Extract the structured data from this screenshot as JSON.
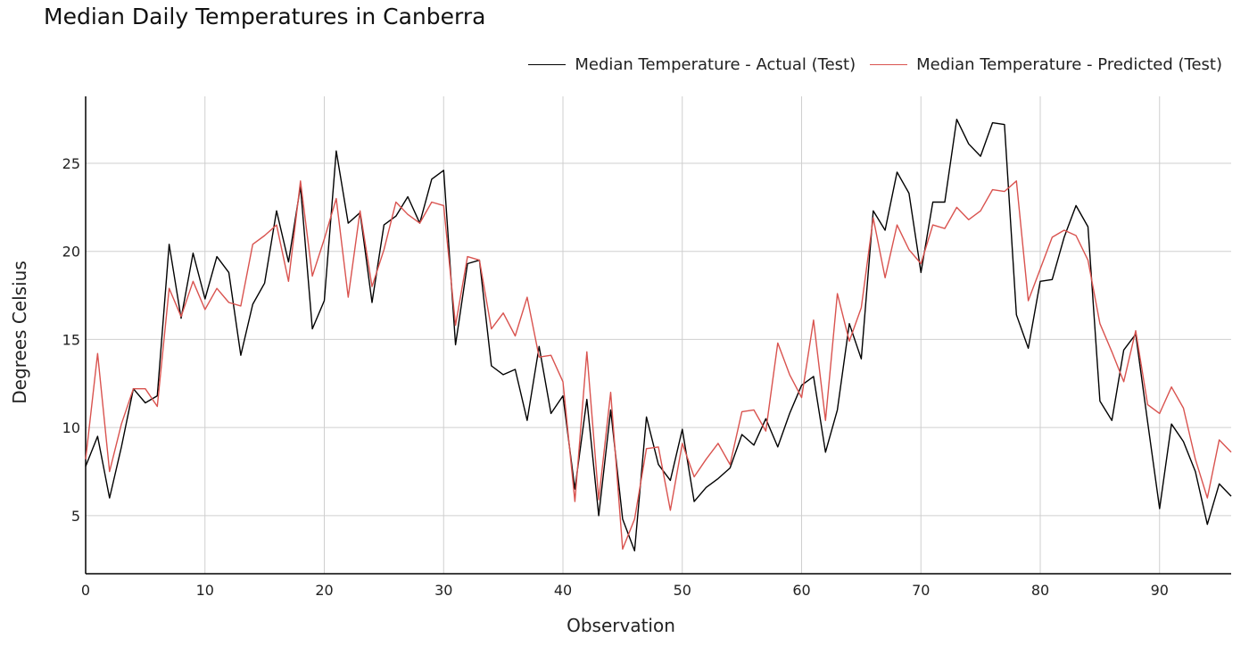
{
  "chart_data": {
    "type": "line",
    "title": "Median Daily Temperatures in Canberra",
    "xlabel": "Observation",
    "ylabel": "Degrees Celsius",
    "xlim": [
      0,
      96
    ],
    "ylim": [
      1.7,
      28.8
    ],
    "x_ticks": [
      0,
      10,
      20,
      30,
      40,
      50,
      60,
      70,
      80,
      90
    ],
    "y_ticks": [
      5,
      10,
      15,
      20,
      25
    ],
    "grid": true,
    "legend_position": "top-right",
    "series": [
      {
        "name": "Median Temperature - Actual (Test)",
        "color": "#000000",
        "values": [
          7.8,
          9.5,
          6.0,
          8.9,
          12.2,
          11.4,
          11.8,
          20.4,
          16.2,
          19.9,
          17.3,
          19.7,
          18.8,
          14.1,
          17.0,
          18.2,
          22.3,
          19.4,
          23.7,
          15.6,
          17.2,
          25.7,
          21.6,
          22.2,
          17.1,
          21.5,
          22.0,
          23.1,
          21.6,
          24.1,
          24.6,
          14.7,
          19.3,
          19.5,
          13.5,
          13.0,
          13.3,
          10.4,
          14.6,
          10.8,
          11.8,
          6.5,
          11.6,
          5.0,
          11.0,
          4.8,
          3.0,
          10.6,
          7.9,
          7.0,
          9.9,
          5.8,
          6.6,
          7.1,
          7.7,
          9.6,
          9.0,
          10.5,
          8.9,
          10.8,
          12.4,
          12.9,
          8.6,
          11.0,
          15.9,
          13.9,
          22.3,
          21.2,
          24.5,
          23.3,
          18.8,
          22.8,
          22.8,
          27.5,
          26.1,
          25.4,
          27.3,
          27.2,
          16.4,
          14.5,
          18.3,
          18.4,
          20.8,
          22.6,
          21.4,
          11.5,
          10.4,
          14.4,
          15.3,
          10.3,
          5.4,
          10.2,
          9.2,
          7.5,
          4.5,
          6.8,
          6.1
        ]
      },
      {
        "name": "Median Temperature - Predicted (Test)",
        "color": "#d9534f",
        "values": [
          8.2,
          14.2,
          7.5,
          10.2,
          12.2,
          12.2,
          11.2,
          17.9,
          16.3,
          18.3,
          16.7,
          17.9,
          17.1,
          16.9,
          20.4,
          20.9,
          21.5,
          18.3,
          24.0,
          18.6,
          20.7,
          23.0,
          17.4,
          22.3,
          18.0,
          20.1,
          22.8,
          22.1,
          21.6,
          22.8,
          22.6,
          15.8,
          19.7,
          19.5,
          15.6,
          16.5,
          15.2,
          17.4,
          14.0,
          14.1,
          12.6,
          5.8,
          14.3,
          5.9,
          12.0,
          3.1,
          4.8,
          8.8,
          8.9,
          5.3,
          9.1,
          7.2,
          8.2,
          9.1,
          7.9,
          10.9,
          11.0,
          9.8,
          14.8,
          13.0,
          11.7,
          16.1,
          10.4,
          17.6,
          14.9,
          16.8,
          21.9,
          18.5,
          21.5,
          20.1,
          19.3,
          21.5,
          21.3,
          22.5,
          21.8,
          22.3,
          23.5,
          23.4,
          24.0,
          17.2,
          19.0,
          20.8,
          21.2,
          20.9,
          19.5,
          15.9,
          14.3,
          12.6,
          15.5,
          11.3,
          10.8,
          12.3,
          11.1,
          8.2,
          6.0,
          9.3,
          8.6
        ]
      }
    ]
  }
}
